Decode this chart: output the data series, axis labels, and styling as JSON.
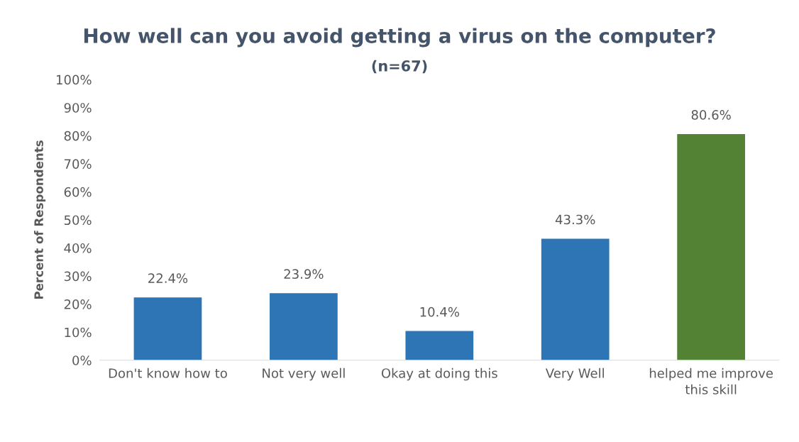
{
  "chart_data": {
    "type": "bar",
    "title": "How well can you avoid getting a virus on the computer?",
    "subtitle": "(n=67)",
    "ylabel": "Percent of Respondents",
    "categories": [
      "Don't know how to",
      "Not very well",
      "Okay at doing this",
      "Very Well",
      "helped me improve\nthis skill"
    ],
    "values": [
      22.4,
      23.9,
      10.4,
      43.3,
      80.6
    ],
    "colors": [
      "#2e75b6",
      "#2e75b6",
      "#2e75b6",
      "#2e75b6",
      "#548235"
    ],
    "value_labels": [
      "22.4%",
      "23.9%",
      "10.4%",
      "43.3%",
      "80.6%"
    ],
    "ylim": [
      0,
      100
    ],
    "yticks": [
      {
        "value": 0,
        "label": "0%"
      },
      {
        "value": 10,
        "label": "10%"
      },
      {
        "value": 20,
        "label": "20%"
      },
      {
        "value": 30,
        "label": "30%"
      },
      {
        "value": 40,
        "label": "40%"
      },
      {
        "value": 50,
        "label": "50%"
      },
      {
        "value": 60,
        "label": "60%"
      },
      {
        "value": 70,
        "label": "70%"
      },
      {
        "value": 80,
        "label": "80%"
      },
      {
        "value": 90,
        "label": "90%"
      },
      {
        "value": 100,
        "label": "100%"
      }
    ],
    "grid": false
  }
}
